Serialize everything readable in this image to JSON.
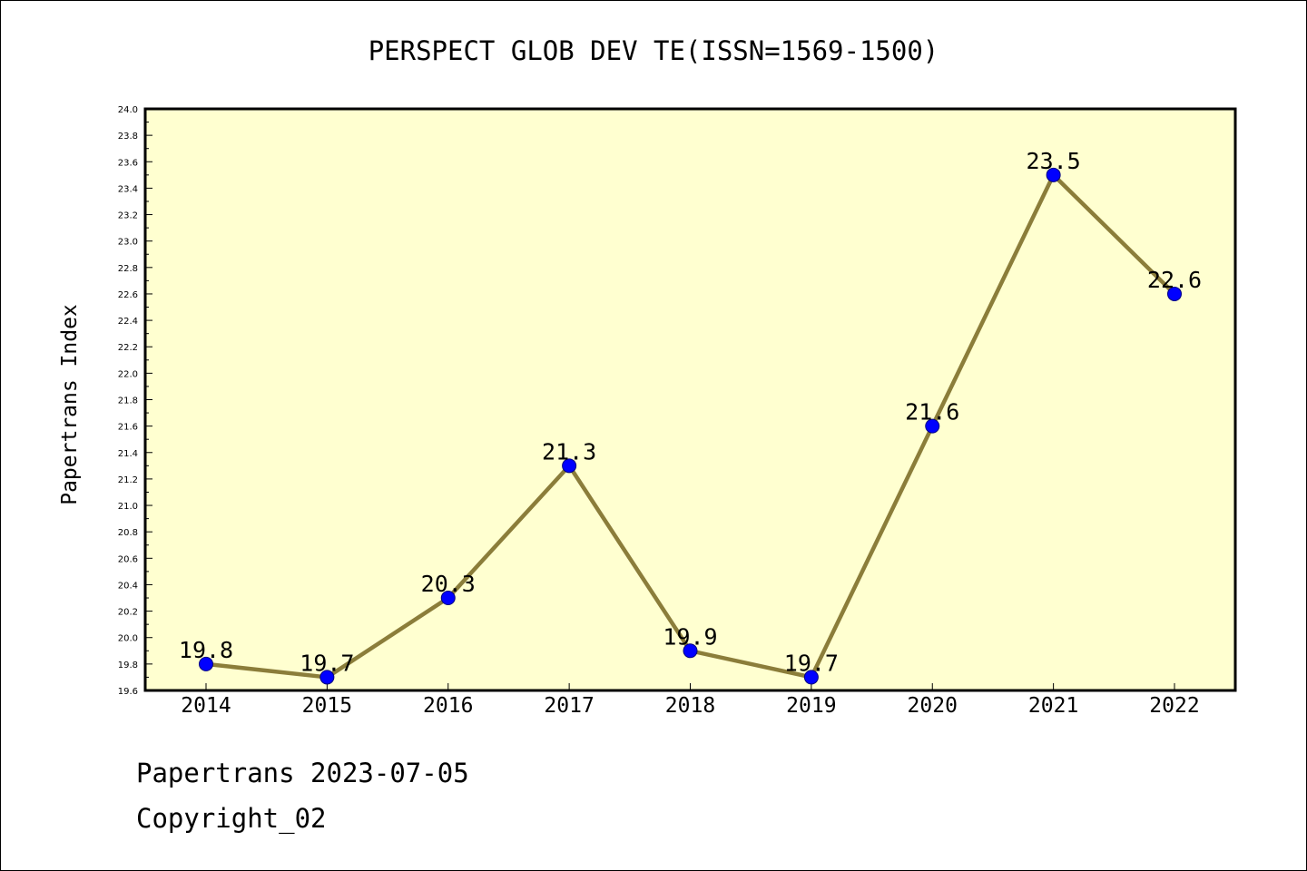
{
  "chart_data": {
    "type": "line",
    "title": "PERSPECT GLOB DEV TE(ISSN=1569-1500)",
    "xlabel": "",
    "ylabel": "Papertrans Index",
    "categories": [
      "2014",
      "2015",
      "2016",
      "2017",
      "2018",
      "2019",
      "2020",
      "2021",
      "2022"
    ],
    "series": [
      {
        "values": [
          19.8,
          19.7,
          20.3,
          21.3,
          19.9,
          19.7,
          21.6,
          23.5,
          22.6
        ],
        "data_labels": [
          "19.8",
          "19.7",
          "20.3",
          "21.3",
          "19.9",
          "19.7",
          "21.6",
          "23.5",
          "22.6"
        ]
      }
    ],
    "ylim": [
      19.6,
      24.0
    ],
    "yticks": [
      "19.6",
      "19.8",
      "20.0",
      "20.2",
      "20.4",
      "20.6",
      "20.8",
      "21.0",
      "21.2",
      "21.4",
      "21.6",
      "21.8",
      "22.0",
      "22.2",
      "22.4",
      "22.6",
      "22.8",
      "23.0",
      "23.2",
      "23.4",
      "23.6",
      "23.8",
      "24.0"
    ],
    "grid": false,
    "legend": "none"
  },
  "colors": {
    "plot_background": "#ffffd0",
    "line": "#8b7d3a",
    "marker_fill": "#0000ff",
    "marker_edge": "#000080"
  },
  "footer": {
    "line1": "Papertrans 2023-07-05",
    "line2": "Copyright_02"
  }
}
